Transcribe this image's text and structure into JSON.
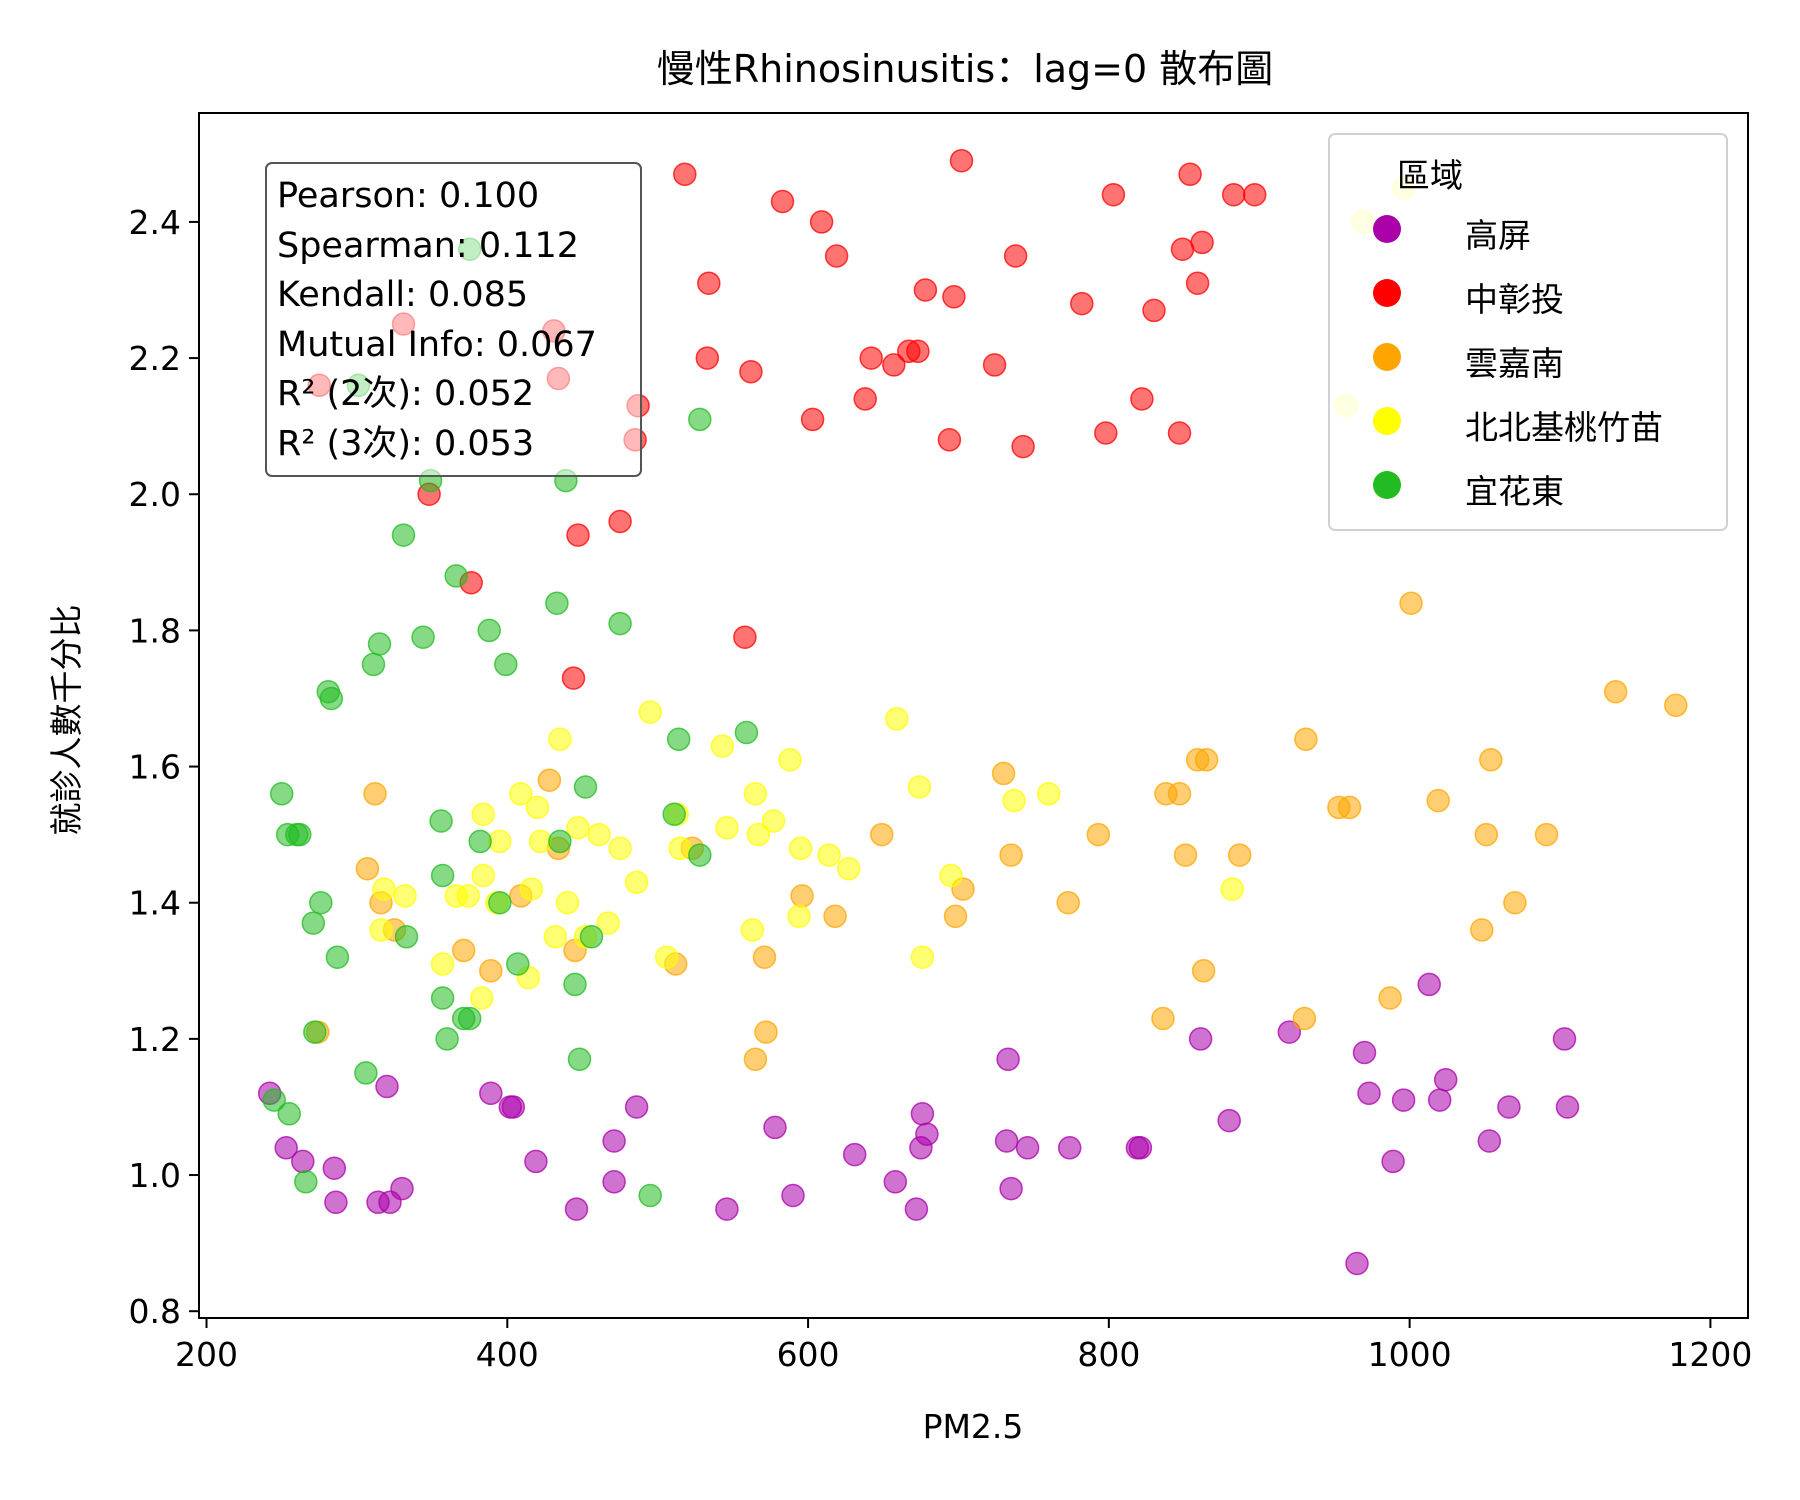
{
  "chart_data": {
    "type": "scatter",
    "title": "慢性Rhinosinusitis：lag=0 散布圖",
    "xlabel": "PM2.5",
    "ylabel": "就診人數千分比",
    "xlim": [
      195,
      1225
    ],
    "ylim": [
      0.79,
      2.56
    ],
    "xticks": [
      200,
      400,
      600,
      800,
      1000,
      1200
    ],
    "yticks": [
      0.8,
      1.0,
      1.2,
      1.4,
      1.6,
      1.8,
      2.0,
      2.2,
      2.4
    ],
    "xtick_labels": [
      "200",
      "400",
      "600",
      "800",
      "1000",
      "1200"
    ],
    "ytick_labels": [
      "0.8",
      "1.0",
      "1.2",
      "1.4",
      "1.6",
      "1.8",
      "2.0",
      "2.2",
      "2.4"
    ],
    "grid": false,
    "legend": {
      "title": "區域",
      "placement": "top-right"
    },
    "stats": [
      "Pearson: 0.100",
      "Spearman: 0.112",
      "Kendall: 0.085",
      "Mutual Info: 0.067",
      "R² (2次): 0.052",
      "R² (3次): 0.053"
    ],
    "series": [
      {
        "name": "高屏",
        "color": "#aa00aa",
        "points": [
          [
            242,
            1.12
          ],
          [
            253,
            1.04
          ],
          [
            264,
            1.02
          ],
          [
            285,
            1.01
          ],
          [
            286,
            0.96
          ],
          [
            314,
            0.96
          ],
          [
            322,
            0.96
          ],
          [
            320,
            1.13
          ],
          [
            330,
            0.98
          ],
          [
            389,
            1.12
          ],
          [
            402,
            1.1
          ],
          [
            404,
            1.1
          ],
          [
            419,
            1.02
          ],
          [
            446,
            0.95
          ],
          [
            471,
            1.05
          ],
          [
            471,
            0.99
          ],
          [
            486,
            1.1
          ],
          [
            546,
            0.95
          ],
          [
            578,
            1.07
          ],
          [
            590,
            0.97
          ],
          [
            631,
            1.03
          ],
          [
            658,
            0.99
          ],
          [
            672,
            0.95
          ],
          [
            675,
            1.04
          ],
          [
            676,
            1.09
          ],
          [
            679,
            1.06
          ],
          [
            732,
            1.05
          ],
          [
            733,
            1.17
          ],
          [
            735,
            0.98
          ],
          [
            746,
            1.04
          ],
          [
            774,
            1.04
          ],
          [
            819,
            1.04
          ],
          [
            821,
            1.04
          ],
          [
            861,
            1.2
          ],
          [
            880,
            1.08
          ],
          [
            920,
            1.21
          ],
          [
            965,
            0.87
          ],
          [
            970,
            1.18
          ],
          [
            973,
            1.12
          ],
          [
            989,
            1.02
          ],
          [
            996,
            1.11
          ],
          [
            1013,
            1.28
          ],
          [
            1020,
            1.11
          ],
          [
            1024,
            1.14
          ],
          [
            1053,
            1.05
          ],
          [
            1066,
            1.1
          ],
          [
            1103,
            1.2
          ],
          [
            1105,
            1.1
          ]
        ]
      },
      {
        "name": "中彰投",
        "color": "#ff0000",
        "points": [
          [
            275,
            2.16
          ],
          [
            331,
            2.25
          ],
          [
            348,
            2.0
          ],
          [
            376,
            1.87
          ],
          [
            431,
            2.24
          ],
          [
            434,
            2.17
          ],
          [
            444,
            1.73
          ],
          [
            447,
            1.94
          ],
          [
            475,
            1.96
          ],
          [
            485,
            2.08
          ],
          [
            487,
            2.13
          ],
          [
            518,
            2.47
          ],
          [
            533,
            2.2
          ],
          [
            534,
            2.31
          ],
          [
            562,
            2.18
          ],
          [
            558,
            1.79
          ],
          [
            583,
            2.43
          ],
          [
            603,
            2.11
          ],
          [
            609,
            2.4
          ],
          [
            619,
            2.35
          ],
          [
            638,
            2.14
          ],
          [
            642,
            2.2
          ],
          [
            657,
            2.19
          ],
          [
            667,
            2.21
          ],
          [
            673,
            2.21
          ],
          [
            678,
            2.3
          ],
          [
            694,
            2.08
          ],
          [
            697,
            2.29
          ],
          [
            702,
            2.49
          ],
          [
            724,
            2.19
          ],
          [
            738,
            2.35
          ],
          [
            743,
            2.07
          ],
          [
            782,
            2.28
          ],
          [
            798,
            2.09
          ],
          [
            803,
            2.44
          ],
          [
            822,
            2.14
          ],
          [
            830,
            2.27
          ],
          [
            847,
            2.09
          ],
          [
            849,
            2.36
          ],
          [
            854,
            2.47
          ],
          [
            859,
            2.31
          ],
          [
            862,
            2.37
          ],
          [
            883,
            2.44
          ],
          [
            897,
            2.44
          ]
        ]
      },
      {
        "name": "雲嘉南",
        "color": "#ffa500",
        "points": [
          [
            274,
            1.21
          ],
          [
            307,
            1.45
          ],
          [
            312,
            1.56
          ],
          [
            316,
            1.4
          ],
          [
            325,
            1.36
          ],
          [
            371,
            1.33
          ],
          [
            389,
            1.3
          ],
          [
            409,
            1.41
          ],
          [
            428,
            1.58
          ],
          [
            434,
            1.48
          ],
          [
            445,
            1.33
          ],
          [
            512,
            1.31
          ],
          [
            523,
            1.48
          ],
          [
            565,
            1.17
          ],
          [
            572,
            1.21
          ],
          [
            571,
            1.32
          ],
          [
            596,
            1.41
          ],
          [
            618,
            1.38
          ],
          [
            649,
            1.5
          ],
          [
            698,
            1.38
          ],
          [
            703,
            1.42
          ],
          [
            730,
            1.59
          ],
          [
            735,
            1.47
          ],
          [
            773,
            1.4
          ],
          [
            793,
            1.5
          ],
          [
            836,
            1.23
          ],
          [
            838,
            1.56
          ],
          [
            847,
            1.56
          ],
          [
            851,
            1.47
          ],
          [
            859,
            1.61
          ],
          [
            863,
            1.3
          ],
          [
            865,
            1.61
          ],
          [
            887,
            1.47
          ],
          [
            931,
            1.64
          ],
          [
            930,
            1.23
          ],
          [
            953,
            1.54
          ],
          [
            960,
            1.54
          ],
          [
            987,
            1.26
          ],
          [
            1001,
            1.84
          ],
          [
            1019,
            1.55
          ],
          [
            1048,
            1.36
          ],
          [
            1051,
            1.5
          ],
          [
            1054,
            1.61
          ],
          [
            1070,
            1.4
          ],
          [
            1091,
            1.5
          ],
          [
            1137,
            1.71
          ],
          [
            1177,
            1.69
          ]
        ]
      },
      {
        "name": "北北基桃竹苗",
        "color": "#ffff00",
        "points": [
          [
            316,
            1.36
          ],
          [
            318,
            1.42
          ],
          [
            332,
            1.41
          ],
          [
            357,
            1.31
          ],
          [
            366,
            1.41
          ],
          [
            374,
            1.41
          ],
          [
            383,
            1.26
          ],
          [
            384,
            1.44
          ],
          [
            384,
            1.53
          ],
          [
            393,
            1.4
          ],
          [
            395,
            1.49
          ],
          [
            409,
            1.56
          ],
          [
            414,
            1.29
          ],
          [
            416,
            1.42
          ],
          [
            420,
            1.54
          ],
          [
            422,
            1.49
          ],
          [
            432,
            1.35
          ],
          [
            435,
            1.64
          ],
          [
            440,
            1.4
          ],
          [
            447,
            1.51
          ],
          [
            452,
            1.35
          ],
          [
            461,
            1.5
          ],
          [
            467,
            1.37
          ],
          [
            475,
            1.48
          ],
          [
            486,
            1.43
          ],
          [
            495,
            1.68
          ],
          [
            506,
            1.32
          ],
          [
            513,
            1.53
          ],
          [
            515,
            1.48
          ],
          [
            546,
            1.51
          ],
          [
            543,
            1.63
          ],
          [
            563,
            1.36
          ],
          [
            565,
            1.56
          ],
          [
            567,
            1.5
          ],
          [
            577,
            1.52
          ],
          [
            588,
            1.61
          ],
          [
            594,
            1.38
          ],
          [
            595,
            1.48
          ],
          [
            614,
            1.47
          ],
          [
            627,
            1.45
          ],
          [
            659,
            1.67
          ],
          [
            674,
            1.57
          ],
          [
            676,
            1.32
          ],
          [
            695,
            1.44
          ],
          [
            737,
            1.55
          ],
          [
            760,
            1.56
          ],
          [
            882,
            1.42
          ],
          [
            958,
            2.13
          ],
          [
            969,
            2.4
          ],
          [
            996,
            2.45
          ]
        ]
      },
      {
        "name": "宜花東",
        "color": "#22bb22",
        "points": [
          [
            245,
            1.11
          ],
          [
            250,
            1.56
          ],
          [
            255,
            1.09
          ],
          [
            254,
            1.5
          ],
          [
            260,
            1.5
          ],
          [
            262,
            1.5
          ],
          [
            266,
            0.99
          ],
          [
            271,
            1.37
          ],
          [
            272,
            1.21
          ],
          [
            276,
            1.4
          ],
          [
            281,
            1.71
          ],
          [
            283,
            1.7
          ],
          [
            287,
            1.32
          ],
          [
            301,
            2.16
          ],
          [
            306,
            1.15
          ],
          [
            311,
            1.75
          ],
          [
            315,
            1.78
          ],
          [
            331,
            1.94
          ],
          [
            333,
            1.35
          ],
          [
            344,
            1.79
          ],
          [
            349,
            2.02
          ],
          [
            356,
            1.52
          ],
          [
            357,
            1.44
          ],
          [
            357,
            1.26
          ],
          [
            360,
            1.2
          ],
          [
            366,
            1.88
          ],
          [
            371,
            1.23
          ],
          [
            375,
            1.23
          ],
          [
            375,
            2.36
          ],
          [
            382,
            1.49
          ],
          [
            388,
            1.8
          ],
          [
            395,
            1.4
          ],
          [
            399,
            1.75
          ],
          [
            407,
            1.31
          ],
          [
            433,
            1.84
          ],
          [
            435,
            1.49
          ],
          [
            439,
            2.02
          ],
          [
            445,
            1.28
          ],
          [
            448,
            1.17
          ],
          [
            452,
            1.57
          ],
          [
            456,
            1.35
          ],
          [
            475,
            1.81
          ],
          [
            495,
            0.97
          ],
          [
            511,
            1.53
          ],
          [
            514,
            1.64
          ],
          [
            528,
            1.47
          ],
          [
            528,
            2.11
          ],
          [
            559,
            1.65
          ]
        ]
      }
    ]
  }
}
